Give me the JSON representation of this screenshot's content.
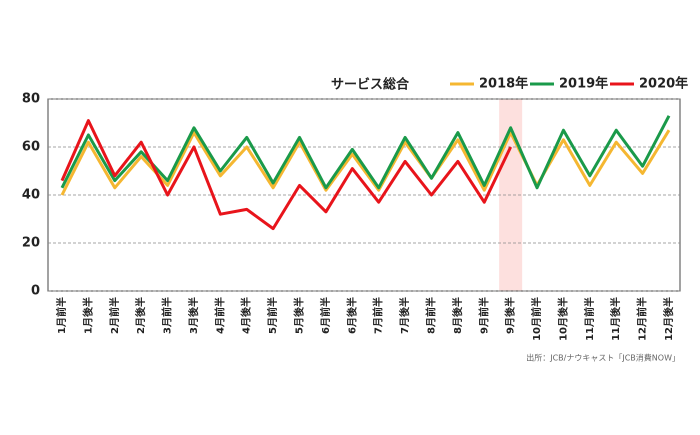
{
  "chart_data": {
    "type": "line",
    "title": "サービス総合",
    "categories": [
      "1月前半",
      "1月後半",
      "2月前半",
      "2月後半",
      "3月前半",
      "3月後半",
      "4月前半",
      "4月後半",
      "5月前半",
      "5月後半",
      "6月前半",
      "6月後半",
      "7月前半",
      "7月後半",
      "8月前半",
      "8月後半",
      "9月前半",
      "9月後半",
      "10月前半",
      "10月後半",
      "11月前半",
      "11月後半",
      "12月前半",
      "12月後半"
    ],
    "series": [
      {
        "name": "2018年",
        "color": "#f5b731",
        "values": [
          40,
          62,
          43,
          56,
          44,
          66,
          48,
          60,
          43,
          62,
          42,
          57,
          42,
          62,
          47,
          63,
          42,
          66,
          44,
          63,
          44,
          62,
          49,
          67
        ]
      },
      {
        "name": "2019年",
        "color": "#1a9a4a",
        "values": [
          43,
          65,
          46,
          58,
          46,
          68,
          50,
          64,
          45,
          64,
          43,
          59,
          43,
          64,
          47,
          66,
          44,
          68,
          43,
          67,
          48,
          67,
          52,
          73
        ]
      },
      {
        "name": "2020年",
        "color": "#e8141b",
        "values": [
          46,
          71,
          48,
          62,
          40,
          60,
          32,
          34,
          26,
          44,
          33,
          51,
          37,
          54,
          40,
          54,
          37,
          60,
          null,
          null,
          null,
          null,
          null,
          null
        ]
      }
    ],
    "ylim": [
      0,
      80
    ],
    "yticks": [
      0,
      20,
      40,
      60,
      80
    ],
    "grid": true,
    "highlight": "9月後半",
    "source": "出所：JCB/ナウキャスト「JCB消費NOW」"
  }
}
